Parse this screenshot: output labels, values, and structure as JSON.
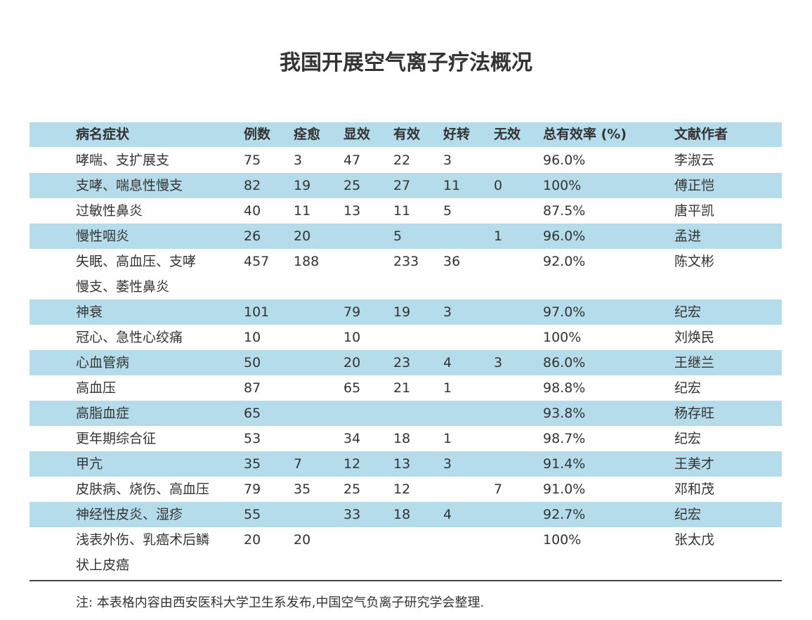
{
  "title": "我国开展空气离子疗法概况",
  "table": {
    "header": [
      "病名症状",
      "例数",
      "痊愈",
      "显效",
      "有效",
      "好转",
      "无效",
      "总有效率 (%)",
      "文献作者"
    ],
    "rows": [
      [
        [
          "哮喘、支扩展支"
        ],
        "75",
        "3",
        "47",
        "22",
        "3",
        null,
        "96.0%",
        "李淑云"
      ],
      [
        [
          "支哮、喘息性慢支"
        ],
        "82",
        "19",
        "25",
        "27",
        "11",
        "0",
        "100%",
        "傅正恺"
      ],
      [
        [
          "过敏性鼻炎"
        ],
        "40",
        "11",
        "13",
        "11",
        "5",
        null,
        "87.5%",
        "唐平凯"
      ],
      [
        [
          "慢性咽炎"
        ],
        "26",
        "20",
        null,
        "5",
        null,
        "1",
        "96.0%",
        "孟进"
      ],
      [
        [
          "失眠、高血压、支哮",
          "慢支、萎性鼻炎"
        ],
        "457",
        "188",
        null,
        "233",
        "36",
        null,
        "92.0%",
        "陈文彬"
      ],
      [
        [
          "神衰"
        ],
        "101",
        null,
        "79",
        "19",
        "3",
        null,
        "97.0%",
        "纪宏"
      ],
      [
        [
          "冠心、急性心绞痛"
        ],
        "10",
        null,
        "10",
        null,
        null,
        null,
        "100%",
        "刘焕民"
      ],
      [
        [
          "心血管病"
        ],
        "50",
        null,
        "20",
        "23",
        "4",
        "3",
        "86.0%",
        "王继兰"
      ],
      [
        [
          "高血压"
        ],
        "87",
        null,
        "65",
        "21",
        "1",
        null,
        "98.8%",
        "纪宏"
      ],
      [
        [
          "高脂血症"
        ],
        "65",
        null,
        null,
        null,
        null,
        null,
        "93.8%",
        "杨存旺"
      ],
      [
        [
          "更年期综合征"
        ],
        "53",
        null,
        "34",
        "18",
        "1",
        null,
        "98.7%",
        "纪宏"
      ],
      [
        [
          "甲亢"
        ],
        "35",
        "7",
        "12",
        "13",
        "3",
        null,
        "91.4%",
        "王美才"
      ],
      [
        [
          "皮肤病、烧伤、高血压"
        ],
        "79",
        "35",
        "25",
        "12",
        null,
        "7",
        "91.0%",
        "邓和茂"
      ],
      [
        [
          "神经性皮炎、湿疹"
        ],
        "55",
        null,
        "33",
        "18",
        "4",
        null,
        "92.7%",
        "纪宏"
      ],
      [
        [
          "浅表外伤、乳癌术后鳞",
          "状上皮癌"
        ],
        "20",
        "20",
        null,
        null,
        null,
        null,
        "100%",
        "张太戊"
      ]
    ]
  },
  "note": "注: 本表格内容由西安医科大学卫生系发布,中国空气负离子研究学会整理."
}
